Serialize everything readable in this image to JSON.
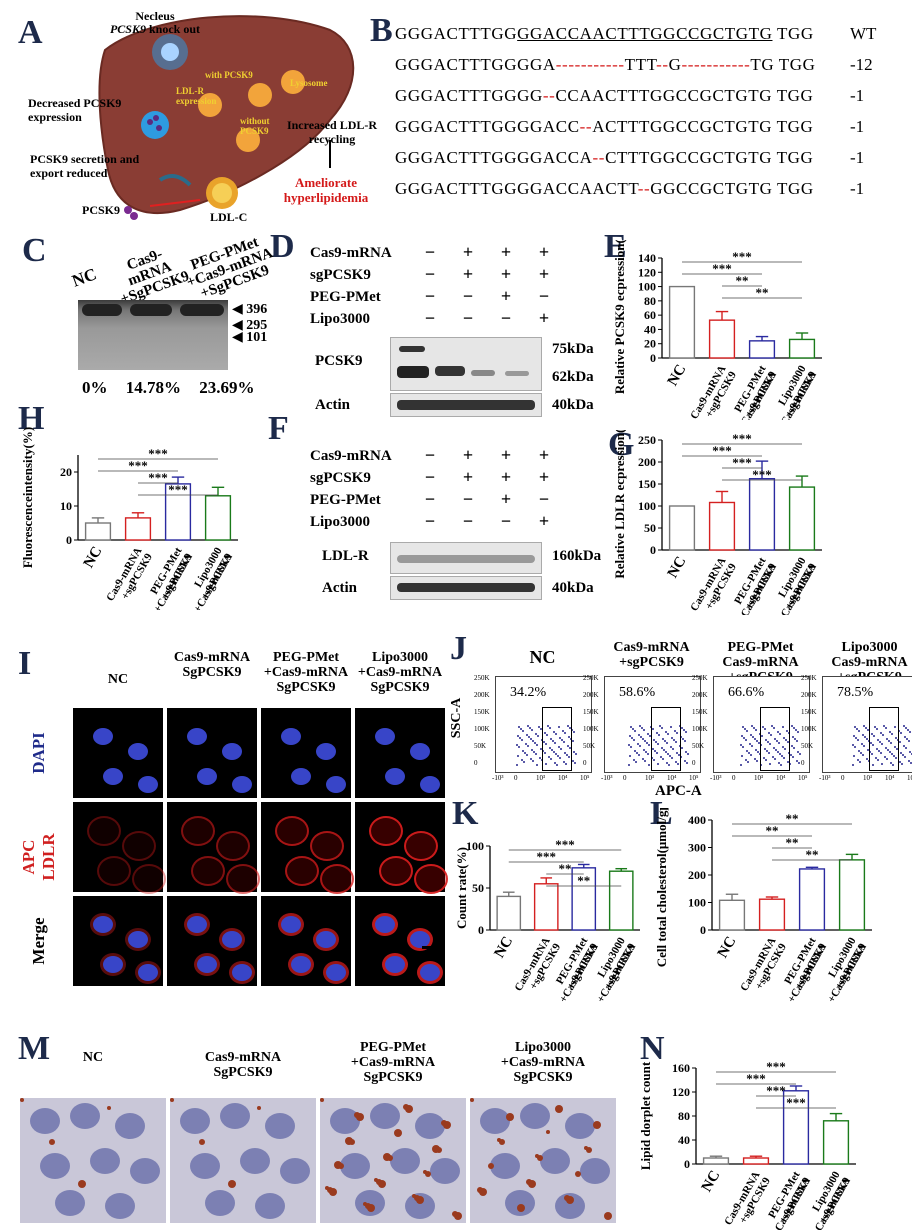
{
  "panels": {
    "A": "A",
    "B": "B",
    "C": "C",
    "D": "D",
    "E": "E",
    "F": "F",
    "G": "G",
    "H": "H",
    "I": "I",
    "J": "J",
    "K": "K",
    "L": "L",
    "M": "M",
    "N": "N"
  },
  "panelA": {
    "nucleus": "Necleus",
    "knockout_gene": "PCSK9",
    "knockout_text": "knock out",
    "decreased": "Decreased PCSK9 expression",
    "secretion": "PCSK9 secretion and export reduced",
    "pcsk9": "PCSK9",
    "ldlc": "LDL-C",
    "with": "with PCSK9",
    "ldlr_expr": "LDL-R expression",
    "without": "without PCSK9",
    "lysosome": "Lysosome",
    "recycling": "Increased LDL-R recycling",
    "ameliorate": "Ameliorate hyperlipidemia"
  },
  "panelB": {
    "rows": [
      {
        "segments": [
          {
            "t": "GGGACTTTGG",
            "c": "k"
          },
          {
            "t": "GGACCAACTTTGGCCGCTGTG",
            "c": "u"
          },
          {
            "t": " TGG",
            "c": "k"
          }
        ],
        "tag": "WT"
      },
      {
        "segments": [
          {
            "t": "GGGACTTTGGGGA",
            "c": "k"
          },
          {
            "t": "-----------",
            "c": "r"
          },
          {
            "t": "TTT",
            "c": "k"
          },
          {
            "t": "--",
            "c": "r"
          },
          {
            "t": "G",
            "c": "k"
          },
          {
            "t": "-----------",
            "c": "r"
          },
          {
            "t": "TG TGG",
            "c": "k"
          }
        ],
        "tag": "-12"
      },
      {
        "segments": [
          {
            "t": "GGGACTTTGGGG",
            "c": "k"
          },
          {
            "t": "--",
            "c": "r"
          },
          {
            "t": "CCAACTTTGGCCGCTGTG TGG",
            "c": "k"
          }
        ],
        "tag": "-1"
      },
      {
        "segments": [
          {
            "t": "GGGACTTTGGGGACC",
            "c": "k"
          },
          {
            "t": "--",
            "c": "r"
          },
          {
            "t": "ACTTTGGCCGCTGTG TGG",
            "c": "k"
          }
        ],
        "tag": "-1"
      },
      {
        "segments": [
          {
            "t": "GGGACTTTGGGGACCA",
            "c": "k"
          },
          {
            "t": "--",
            "c": "r"
          },
          {
            "t": "CTTTGGCCGCTGTG TGG",
            "c": "k"
          }
        ],
        "tag": "-1"
      },
      {
        "segments": [
          {
            "t": "GGGACTTTGGGGACCAACTT",
            "c": "k"
          },
          {
            "t": "--",
            "c": "r"
          },
          {
            "t": "GGCCGCTGTG TGG",
            "c": "k"
          }
        ],
        "tag": "-1"
      }
    ]
  },
  "panelC": {
    "lanes": [
      "NC",
      "Cas9-mRNA +SgPCSK9",
      "PEG-PMet +Cas9-mRNA +SgPCSK9"
    ],
    "markers": [
      "396",
      "295",
      "101"
    ],
    "percents": [
      "0%",
      "14.78%",
      "23.69%"
    ]
  },
  "panelD": {
    "rows": [
      {
        "label": "Cas9-mRNA",
        "marks": [
          "−",
          "+",
          "+",
          "+"
        ]
      },
      {
        "label": "sgPCSK9",
        "marks": [
          "−",
          "+",
          "+",
          "+"
        ]
      },
      {
        "label": "PEG-PMet",
        "marks": [
          "−",
          "−",
          "+",
          "−"
        ]
      },
      {
        "label": "Lipo3000",
        "marks": [
          "−",
          "−",
          "−",
          "+"
        ]
      }
    ],
    "blot1_label": "PCSK9",
    "kda1": "75kDa",
    "kda2": "62kDa",
    "blot2_label": "Actin",
    "kda3": "40kDa"
  },
  "panelF": {
    "rows": [
      {
        "label": "Cas9-mRNA",
        "marks": [
          "−",
          "+",
          "+",
          "+"
        ]
      },
      {
        "label": "sgPCSK9",
        "marks": [
          "−",
          "+",
          "+",
          "+"
        ]
      },
      {
        "label": "PEG-PMet",
        "marks": [
          "−",
          "−",
          "+",
          "−"
        ]
      },
      {
        "label": "Lipo3000",
        "marks": [
          "−",
          "−",
          "−",
          "+"
        ]
      }
    ],
    "blot1_label": "LDL-R",
    "kda1": "160kDa",
    "blot2_label": "Actin",
    "kda2": "40kDa"
  },
  "panelI": {
    "cols": [
      "NC",
      "Cas9-mRNA SgPCSK9",
      "PEG-PMet +Cas9-mRNA SgPCSK9",
      "Lipo3000 +Cas9-mRNA SgPCSK9"
    ],
    "rows": [
      "DAPI",
      "APC LDLR",
      "Merge"
    ]
  },
  "panelJ": {
    "cols": [
      "NC",
      "Cas9-mRNA +sgPCSK9",
      "PEG-PMet Cas9-mRNA +sgPCSK9",
      "Lipo3000 Cas9-mRNA +sgPCSK9"
    ],
    "percents": [
      "34.2%",
      "58.6%",
      "66.6%",
      "78.5%"
    ],
    "ylabel": "SSC-A",
    "xlabel": "APC-A",
    "yticks": [
      "250K",
      "200K",
      "150K",
      "100K",
      "50K",
      "0"
    ],
    "xticks": [
      "-10³",
      "0",
      "10³",
      "10⁴",
      "10⁵"
    ]
  },
  "panelM": {
    "cols": [
      "NC",
      "Cas9-mRNA SgPCSK9",
      "PEG-PMet +Cas9-mRNA SgPCSK9",
      "Lipo3000 +Cas9-mRNA SgPCSK9"
    ]
  },
  "chart_data": [
    {
      "id": "E",
      "type": "bar",
      "ylabel": "Relative PCSK9 ecpression(%)",
      "categories": [
        "NC",
        "Cas9-mRNA +sgPCSK9",
        "PEG-PMet +Cas9-mRNA +sgPCSK9",
        "Lipo3000 +Cas9-mRNA +sgPCSK9"
      ],
      "values": [
        100,
        53,
        24,
        26
      ],
      "errors": [
        0,
        12,
        6,
        9
      ],
      "ylim": [
        0,
        140
      ],
      "yticks": [
        0,
        20,
        40,
        60,
        80,
        100,
        120,
        140
      ],
      "colors": [
        "#777777",
        "#d42020",
        "#2a2aa0",
        "#1a7a1a"
      ],
      "sig": [
        "***",
        "***",
        "**",
        "**"
      ]
    },
    {
      "id": "G",
      "type": "bar",
      "ylabel": "Relative LDLR ecpression(%)",
      "categories": [
        "NC",
        "Cas9-mRNA +sgPCSK9",
        "PEG-PMet +Cas9-mRNA +sgPCSK9",
        "Lipo3000 +Cas9-mRNA +sgPCSK9"
      ],
      "values": [
        100,
        108,
        162,
        143
      ],
      "errors": [
        0,
        25,
        40,
        25
      ],
      "ylim": [
        0,
        250
      ],
      "yticks": [
        0,
        50,
        100,
        150,
        200,
        250
      ],
      "colors": [
        "#777777",
        "#d42020",
        "#2a2aa0",
        "#1a7a1a"
      ],
      "sig": [
        "***",
        "***",
        "***",
        "***"
      ]
    },
    {
      "id": "H",
      "type": "bar",
      "ylabel": "Fluorescenceintensity(%)",
      "categories": [
        "NC",
        "Cas9-mRNA +sgPCSK9",
        "PEG-PMet +Cas9-mRNA +sgPCSK9",
        "Lipo3000 +Cas9-mRNA +sgPCSK9"
      ],
      "values": [
        5,
        6.5,
        16.5,
        13
      ],
      "errors": [
        1.5,
        1.5,
        2,
        2.5
      ],
      "ylim": [
        0,
        25
      ],
      "yticks": [
        0,
        10,
        20
      ],
      "colors": [
        "#777777",
        "#d42020",
        "#2a2aa0",
        "#1a7a1a"
      ],
      "sig": [
        "***",
        "***",
        "***",
        "***"
      ]
    },
    {
      "id": "K",
      "type": "bar",
      "ylabel": "Count rate(%)",
      "categories": [
        "NC",
        "Cas9-mRNA +sgPCSK9",
        "PEG-PMet +Cas9-mRNA +sgPCSK9",
        "Lipo3000 +Cas9-mRNA +sgPCSK9"
      ],
      "values": [
        40,
        55,
        74,
        70
      ],
      "errors": [
        5,
        7,
        4,
        3
      ],
      "ylim": [
        0,
        100
      ],
      "yticks": [
        0,
        50,
        100
      ],
      "colors": [
        "#777777",
        "#d42020",
        "#2a2aa0",
        "#1a7a1a"
      ],
      "sig": [
        "***",
        "***",
        "**",
        "**"
      ]
    },
    {
      "id": "L",
      "type": "bar",
      "ylabel": "Cell total cholesterol(μmol/gprot)",
      "categories": [
        "NC",
        "Cas9-mRNA +sgPCSK9",
        "PEG-PMet +Cas9-mRNA +sgPCSK9",
        "Lipo3000 +Cas9-mRNA +sgPCSK9"
      ],
      "values": [
        108,
        112,
        222,
        255
      ],
      "errors": [
        22,
        8,
        6,
        20
      ],
      "ylim": [
        0,
        400
      ],
      "yticks": [
        0,
        100,
        200,
        300,
        400
      ],
      "colors": [
        "#777777",
        "#d42020",
        "#2a2aa0",
        "#1a7a1a"
      ],
      "sig": [
        "**",
        "**",
        "**",
        "**"
      ]
    },
    {
      "id": "N",
      "type": "bar",
      "ylabel": "Lipid dorplet count",
      "categories": [
        "NC",
        "Cas9-mRNA +sgPCSK9",
        "PEG-PMet +Cas9-mRNA +sgPCSK9",
        "Lipo3000 +Cas9-mRNA +sgPCSK9"
      ],
      "values": [
        10,
        10,
        122,
        72
      ],
      "errors": [
        3,
        3,
        8,
        12
      ],
      "ylim": [
        0,
        160
      ],
      "yticks": [
        0,
        40,
        80,
        120,
        160
      ],
      "colors": [
        "#777777",
        "#d42020",
        "#2a2aa0",
        "#1a7a1a"
      ],
      "sig": [
        "***",
        "***",
        "***",
        "***"
      ]
    }
  ]
}
